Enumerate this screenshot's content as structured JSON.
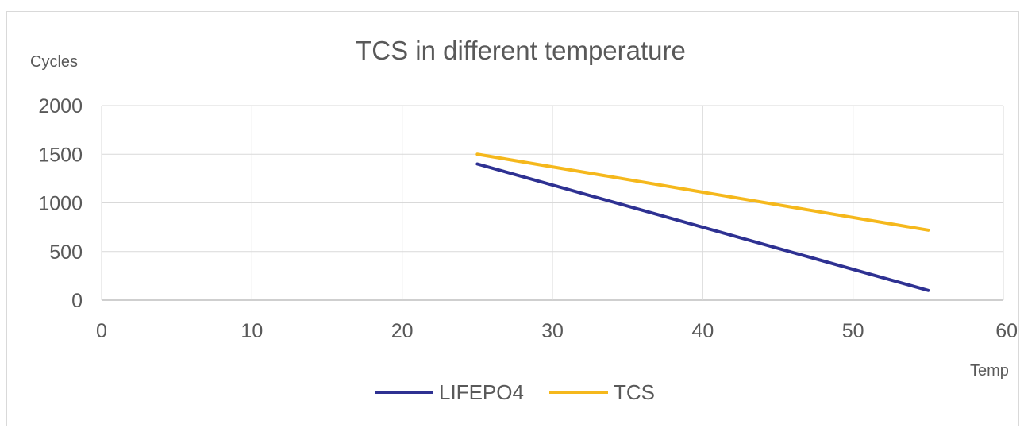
{
  "chart_data": {
    "type": "line",
    "title": "TCS in different temperature",
    "xlabel": "Temp",
    "ylabel": "Cycles",
    "xlim": [
      0,
      60
    ],
    "ylim": [
      0,
      2000
    ],
    "x_ticks": [
      "0",
      "10",
      "20",
      "30",
      "40",
      "50",
      "60"
    ],
    "y_ticks": [
      "2000",
      "1500",
      "1000",
      "500",
      "0"
    ],
    "grid": true,
    "legend_position": "bottom",
    "series": [
      {
        "name": "LIFEPO4",
        "color": "#2e3192",
        "x": [
          25,
          55
        ],
        "y": [
          1400,
          100
        ]
      },
      {
        "name": "TCS",
        "color": "#f5b81c",
        "x": [
          25,
          55
        ],
        "y": [
          1500,
          720
        ]
      }
    ]
  }
}
